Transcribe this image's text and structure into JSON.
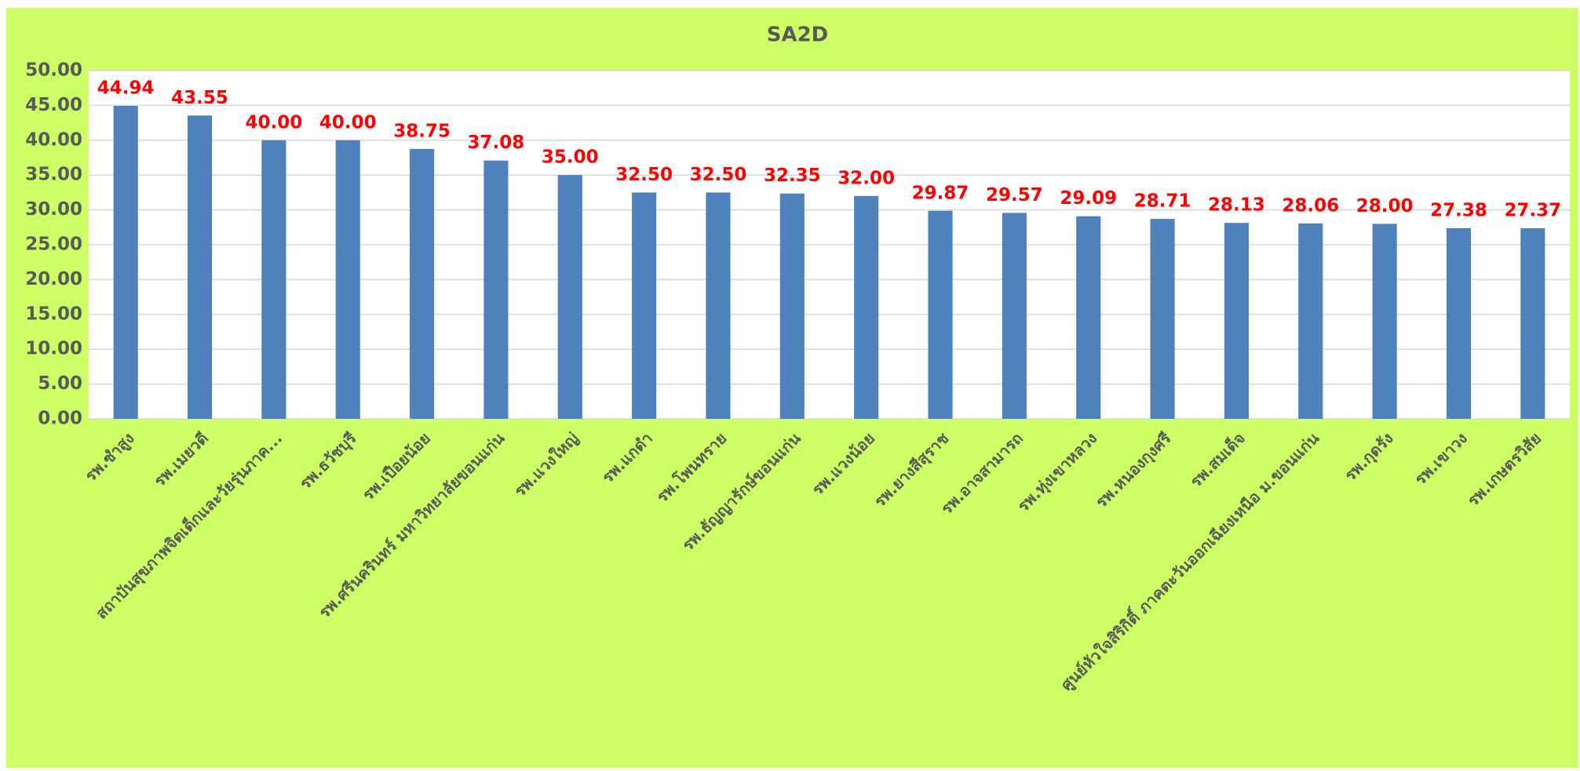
{
  "chart_data": {
    "type": "bar",
    "title": "SA2D",
    "categories": [
      "รพ.ซำสูง",
      "รพ.เมยวดี",
      "สถาบันสุขภาพจิตเด็กและวัยรุ่นภาค...",
      "รพ.ธวัชบุรี",
      "รพ.เปือยน้อย",
      "รพ.ศรีนครินทร์ มหาวิทยาลัยขอนแก่น",
      "รพ.แวงใหญ่",
      "รพ.แกดำ",
      "รพ.โพนทราย",
      "รพ.ธัญญารักษ์ขอนแก่น",
      "รพ.แวงน้อย",
      "รพ.ยางสีสุราช",
      "รพ.อาจสามารถ",
      "รพ.ทุ่งเขาหลวง",
      "รพ.หนองกุงศรี",
      "รพ.สมเด็จ",
      "ศูนย์หัวใจสิริกิติ์ ภาคตะวันออกเฉียงเหนือ ม.ขอนแก่น",
      "รพ.กุดรัง",
      "รพ.เขาวง",
      "รพ.เกษตรวิสัย"
    ],
    "values": [
      44.94,
      43.55,
      40,
      40,
      38.75,
      37.08,
      35,
      32.5,
      32.5,
      32.35,
      32,
      29.87,
      29.57,
      29.09,
      28.71,
      28.13,
      28.06,
      28,
      27.38,
      27.37
    ],
    "value_labels": [
      "44.94",
      "43.55",
      "40.00",
      "40.00",
      "38.75",
      "37.08",
      "35.00",
      "32.50",
      "32.50",
      "32.35",
      "32.00",
      "29.87",
      "29.57",
      "29.09",
      "28.71",
      "28.13",
      "28.06",
      "28.00",
      "27.38",
      "27.37"
    ],
    "color": "#4f81bd",
    "value_label_color": "#ff0000",
    "ylim": [
      0,
      50
    ],
    "yticks": [
      {
        "value": 0,
        "label": "0.00"
      },
      {
        "value": 5,
        "label": "5.00"
      },
      {
        "value": 10,
        "label": "10.00"
      },
      {
        "value": 15,
        "label": "15.00"
      },
      {
        "value": 20,
        "label": "20.00"
      },
      {
        "value": 25,
        "label": "25.00"
      },
      {
        "value": 30,
        "label": "30.00"
      },
      {
        "value": 35,
        "label": "35.00"
      },
      {
        "value": 40,
        "label": "40.00"
      },
      {
        "value": 45,
        "label": "45.00"
      },
      {
        "value": 50,
        "label": "50.00"
      }
    ],
    "grid": true
  }
}
